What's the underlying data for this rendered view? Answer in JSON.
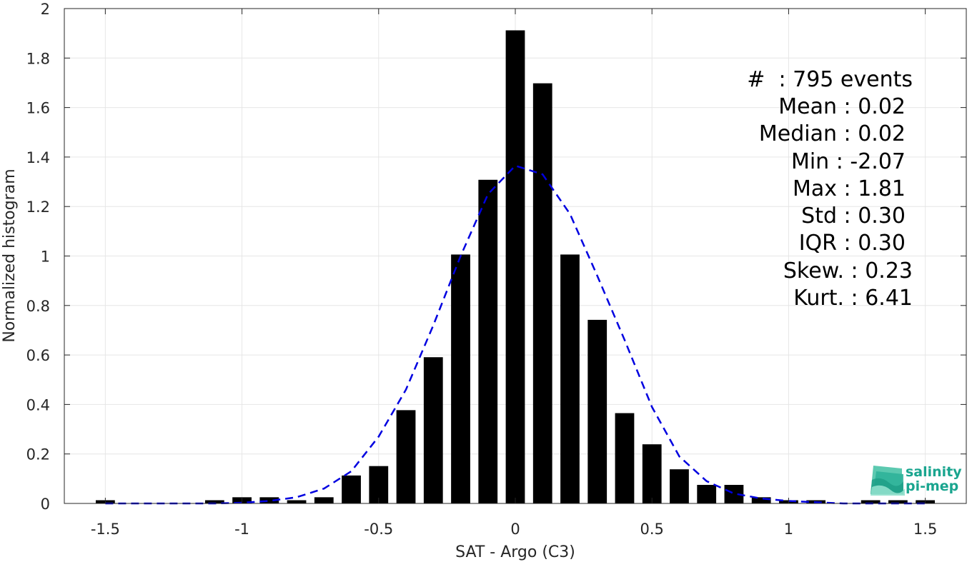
{
  "chart_data": {
    "type": "bar",
    "xlabel": "SAT - Argo (C3)",
    "ylabel": "Normalized histogram",
    "xlim": [
      -1.65,
      1.65
    ],
    "ylim": [
      0,
      2
    ],
    "grid": true,
    "x_ticks": [
      -1.5,
      -1,
      -0.5,
      0,
      0.5,
      1,
      1.5
    ],
    "x_tick_labels": [
      "-1.5",
      "-1",
      "-0.5",
      "0",
      "0.5",
      "1",
      "1.5"
    ],
    "y_ticks": [
      0,
      0.2,
      0.4,
      0.6,
      0.8,
      1,
      1.2,
      1.4,
      1.6,
      1.8,
      2
    ],
    "y_tick_labels": [
      "0",
      "0.2",
      "0.4",
      "0.6",
      "0.8",
      "1",
      "1.2",
      "1.4",
      "1.6",
      "1.8",
      "2"
    ],
    "bar_width": 0.07,
    "bar_color": "#000000",
    "series": [
      {
        "type": "bar",
        "x": [
          -1.5,
          -1.1,
          -1.0,
          -0.9,
          -0.8,
          -0.7,
          -0.6,
          -0.5,
          -0.4,
          -0.3,
          -0.2,
          -0.1,
          0.0,
          0.1,
          0.2,
          0.3,
          0.4,
          0.5,
          0.6,
          0.7,
          0.8,
          0.9,
          1.0,
          1.1,
          1.3,
          1.4,
          1.5
        ],
        "values": [
          0.013,
          0.013,
          0.025,
          0.025,
          0.013,
          0.025,
          0.113,
          0.151,
          0.377,
          0.591,
          1.006,
          1.308,
          1.912,
          1.698,
          1.006,
          0.742,
          0.365,
          0.239,
          0.138,
          0.075,
          0.075,
          0.025,
          0.013,
          0.013,
          0.013,
          0.013,
          0.013
        ]
      },
      {
        "type": "line",
        "style": "dashed",
        "color": "#0000e0",
        "x": [
          -1.5,
          -1.4,
          -1.3,
          -1.2,
          -1.1,
          -1.0,
          -0.9,
          -0.8,
          -0.7,
          -0.6,
          -0.5,
          -0.4,
          -0.3,
          -0.2,
          -0.1,
          0.0,
          0.1,
          0.2,
          0.3,
          0.4,
          0.5,
          0.6,
          0.7,
          0.8,
          0.9,
          1.0,
          1.1,
          1.2,
          1.3,
          1.4,
          1.5
        ],
        "values": [
          0.0,
          0.0,
          0.0,
          0.0,
          0.0,
          0.003,
          0.01,
          0.025,
          0.06,
          0.13,
          0.27,
          0.46,
          0.72,
          1.0,
          1.25,
          1.365,
          1.33,
          1.17,
          0.92,
          0.66,
          0.39,
          0.19,
          0.09,
          0.04,
          0.02,
          0.01,
          0.005,
          0.0,
          0.0,
          0.0,
          0.0
        ]
      }
    ],
    "annotations": [
      "#  : 795 events",
      "Mean : 0.02",
      "Median : 0.02",
      "Min : -2.07",
      "Max : 1.81",
      "Std : 0.30",
      "IQR : 0.30",
      "Skew. : 0.23",
      "Kurt. : 6.41"
    ]
  },
  "logo": {
    "line1": "salinity",
    "line2": "pi-mep"
  }
}
